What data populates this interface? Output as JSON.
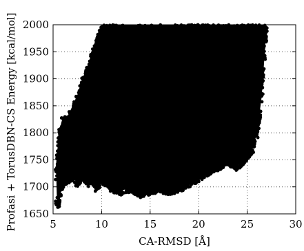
{
  "chart_data": {
    "type": "scatter",
    "xlabel": "CA-RMSD [Å]",
    "ylabel": "Profasi + TorusDBN-CS Energy [kcal/mol]",
    "xlim": [
      5,
      30
    ],
    "ylim": [
      1650,
      2000
    ],
    "xticks": [
      5,
      10,
      15,
      20,
      25,
      30
    ],
    "yticks": [
      1650,
      1700,
      1750,
      1800,
      1850,
      1900,
      1950,
      2000
    ],
    "xtick_labels": [
      "5",
      "10",
      "15",
      "20",
      "25",
      "30"
    ],
    "ytick_labels": [
      "1650",
      "1700",
      "1750",
      "1800",
      "1850",
      "1900",
      "1950",
      "2000"
    ],
    "grid": true,
    "legend": "none",
    "marker_color": "#000000",
    "density_profile": {
      "description_of_region": "dense point cloud; lower envelope (minimum energy) per RMSD bin",
      "x": [
        5.3,
        5.6,
        6.0,
        6.5,
        7.0,
        7.5,
        8.0,
        8.5,
        9.0,
        9.5,
        10.0,
        10.5,
        11.0,
        12.0,
        13.0,
        14.0,
        15.0,
        16.0,
        17.0,
        18.0,
        19.0,
        20.0,
        21.0,
        22.0,
        23.0,
        24.0,
        25.0,
        25.5,
        26.0,
        26.5,
        27.0
      ],
      "y_min": [
        1668,
        1660,
        1700,
        1705,
        1710,
        1700,
        1715,
        1700,
        1705,
        1690,
        1705,
        1700,
        1690,
        1685,
        1690,
        1680,
        1685,
        1690,
        1685,
        1690,
        1700,
        1710,
        1720,
        1730,
        1740,
        1730,
        1750,
        1760,
        1790,
        1860,
        1990
      ],
      "y_max": [
        1740,
        1800,
        1830,
        1830,
        1850,
        1870,
        1900,
        1920,
        1950,
        1980,
        2000,
        2000,
        2000,
        2000,
        2000,
        2000,
        2000,
        2000,
        2000,
        2000,
        2000,
        2000,
        2000,
        2000,
        2000,
        2000,
        2000,
        2000,
        2000,
        2000,
        2000
      ]
    }
  }
}
